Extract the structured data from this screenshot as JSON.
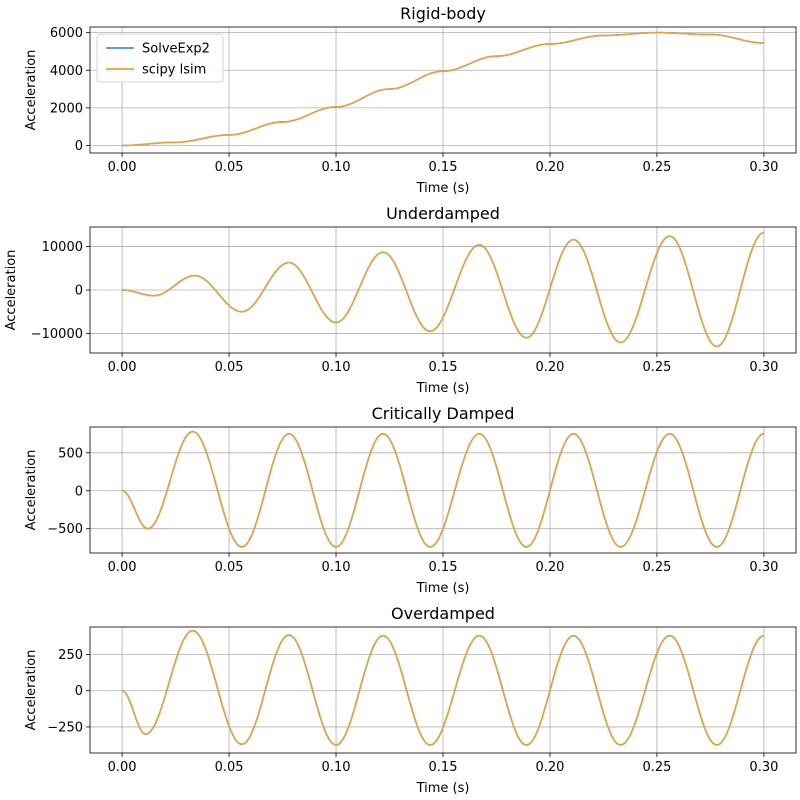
{
  "chart_data": [
    {
      "type": "line",
      "title": "Rigid-body",
      "xlabel": "Time (s)",
      "ylabel": "Acceleration",
      "xlim": [
        -0.015,
        0.315
      ],
      "ylim": [
        -400,
        6300
      ],
      "xticks": [
        0.0,
        0.05,
        0.1,
        0.15,
        0.2,
        0.25,
        0.3
      ],
      "xtick_labels": [
        "0.00",
        "0.05",
        "0.10",
        "0.15",
        "0.20",
        "0.25",
        "0.30"
      ],
      "yticks": [
        0,
        2000,
        4000,
        6000
      ],
      "ytick_labels": [
        "0",
        "2000",
        "4000",
        "6000"
      ],
      "grid": true,
      "legend": {
        "position": "upper-left",
        "entries": [
          "SolveExp2",
          "scipy lsim"
        ]
      },
      "x": [
        0.0,
        0.025,
        0.05,
        0.075,
        0.1,
        0.125,
        0.15,
        0.175,
        0.2,
        0.225,
        0.25,
        0.275,
        0.3
      ],
      "series": [
        {
          "name": "SolveExp2",
          "color": "#4a90e2",
          "values": [
            0,
            170,
            560,
            1250,
            2050,
            3000,
            3950,
            4750,
            5400,
            5850,
            6000,
            5900,
            5450
          ]
        },
        {
          "name": "scipy lsim",
          "color": "#e8a33d",
          "values": [
            0,
            170,
            560,
            1250,
            2050,
            3000,
            3950,
            4750,
            5400,
            5850,
            6000,
            5900,
            5450
          ]
        }
      ]
    },
    {
      "type": "line",
      "title": "Underdamped",
      "xlabel": "Time (s)",
      "ylabel": "Acceleration",
      "xlim": [
        -0.015,
        0.315
      ],
      "ylim": [
        -14500,
        14500
      ],
      "xticks": [
        0.0,
        0.05,
        0.1,
        0.15,
        0.2,
        0.25,
        0.3
      ],
      "xtick_labels": [
        "0.00",
        "0.05",
        "0.10",
        "0.15",
        "0.20",
        "0.25",
        "0.30"
      ],
      "yticks": [
        -10000,
        0,
        10000
      ],
      "ytick_labels": [
        "−10000",
        "0",
        "10000"
      ],
      "grid": true,
      "x": [
        0.0,
        0.015,
        0.034,
        0.056,
        0.078,
        0.1,
        0.122,
        0.144,
        0.167,
        0.189,
        0.211,
        0.233,
        0.256,
        0.278,
        0.3
      ],
      "series": [
        {
          "name": "SolveExp2",
          "color": "#4a90e2",
          "values": [
            0,
            -1300,
            3300,
            -5000,
            6300,
            -7500,
            8700,
            -9500,
            10400,
            -11000,
            11600,
            -12100,
            12400,
            -13000,
            13200
          ]
        },
        {
          "name": "scipy lsim",
          "color": "#e8a33d",
          "values": [
            0,
            -1300,
            3300,
            -5000,
            6300,
            -7500,
            8700,
            -9500,
            10400,
            -11000,
            11600,
            -12100,
            12400,
            -13000,
            13200
          ]
        }
      ]
    },
    {
      "type": "line",
      "title": "Critically Damped",
      "xlabel": "Time (s)",
      "ylabel": "Acceleration",
      "xlim": [
        -0.015,
        0.315
      ],
      "ylim": [
        -820,
        840
      ],
      "xticks": [
        0.0,
        0.05,
        0.1,
        0.15,
        0.2,
        0.25,
        0.3
      ],
      "xtick_labels": [
        "0.00",
        "0.05",
        "0.10",
        "0.15",
        "0.20",
        "0.25",
        "0.30"
      ],
      "yticks": [
        -500,
        0,
        500
      ],
      "ytick_labels": [
        "−500",
        "0",
        "500"
      ],
      "grid": true,
      "x": [
        0.0,
        0.012,
        0.033,
        0.056,
        0.078,
        0.1,
        0.122,
        0.144,
        0.167,
        0.189,
        0.211,
        0.233,
        0.256,
        0.278,
        0.3
      ],
      "series": [
        {
          "name": "SolveExp2",
          "color": "#4a90e2",
          "values": [
            0,
            -500,
            780,
            -740,
            750,
            -740,
            750,
            -740,
            750,
            -740,
            750,
            -740,
            750,
            -740,
            750
          ]
        },
        {
          "name": "scipy lsim",
          "color": "#e8a33d",
          "values": [
            0,
            -500,
            780,
            -740,
            750,
            -740,
            750,
            -740,
            750,
            -740,
            750,
            -740,
            750,
            -740,
            750
          ]
        }
      ]
    },
    {
      "type": "line",
      "title": "Overdamped",
      "xlabel": "Time (s)",
      "ylabel": "Acceleration",
      "xlim": [
        -0.015,
        0.315
      ],
      "ylim": [
        -430,
        440
      ],
      "xticks": [
        0.0,
        0.05,
        0.1,
        0.15,
        0.2,
        0.25,
        0.3
      ],
      "xtick_labels": [
        "0.00",
        "0.05",
        "0.10",
        "0.15",
        "0.20",
        "0.25",
        "0.30"
      ],
      "yticks": [
        -250,
        0,
        250
      ],
      "ytick_labels": [
        "−250",
        "0",
        "250"
      ],
      "grid": true,
      "x": [
        0.0,
        0.011,
        0.033,
        0.056,
        0.078,
        0.1,
        0.122,
        0.144,
        0.167,
        0.189,
        0.211,
        0.233,
        0.256,
        0.278,
        0.3
      ],
      "series": [
        {
          "name": "SolveExp2",
          "color": "#4a90e2",
          "values": [
            0,
            -300,
            415,
            -370,
            385,
            -375,
            380,
            -375,
            380,
            -375,
            380,
            -375,
            380,
            -375,
            380
          ]
        },
        {
          "name": "scipy lsim",
          "color": "#e8a33d",
          "values": [
            0,
            -300,
            415,
            -370,
            385,
            -375,
            380,
            -375,
            380,
            -375,
            380,
            -375,
            380,
            -375,
            380
          ]
        }
      ]
    }
  ]
}
